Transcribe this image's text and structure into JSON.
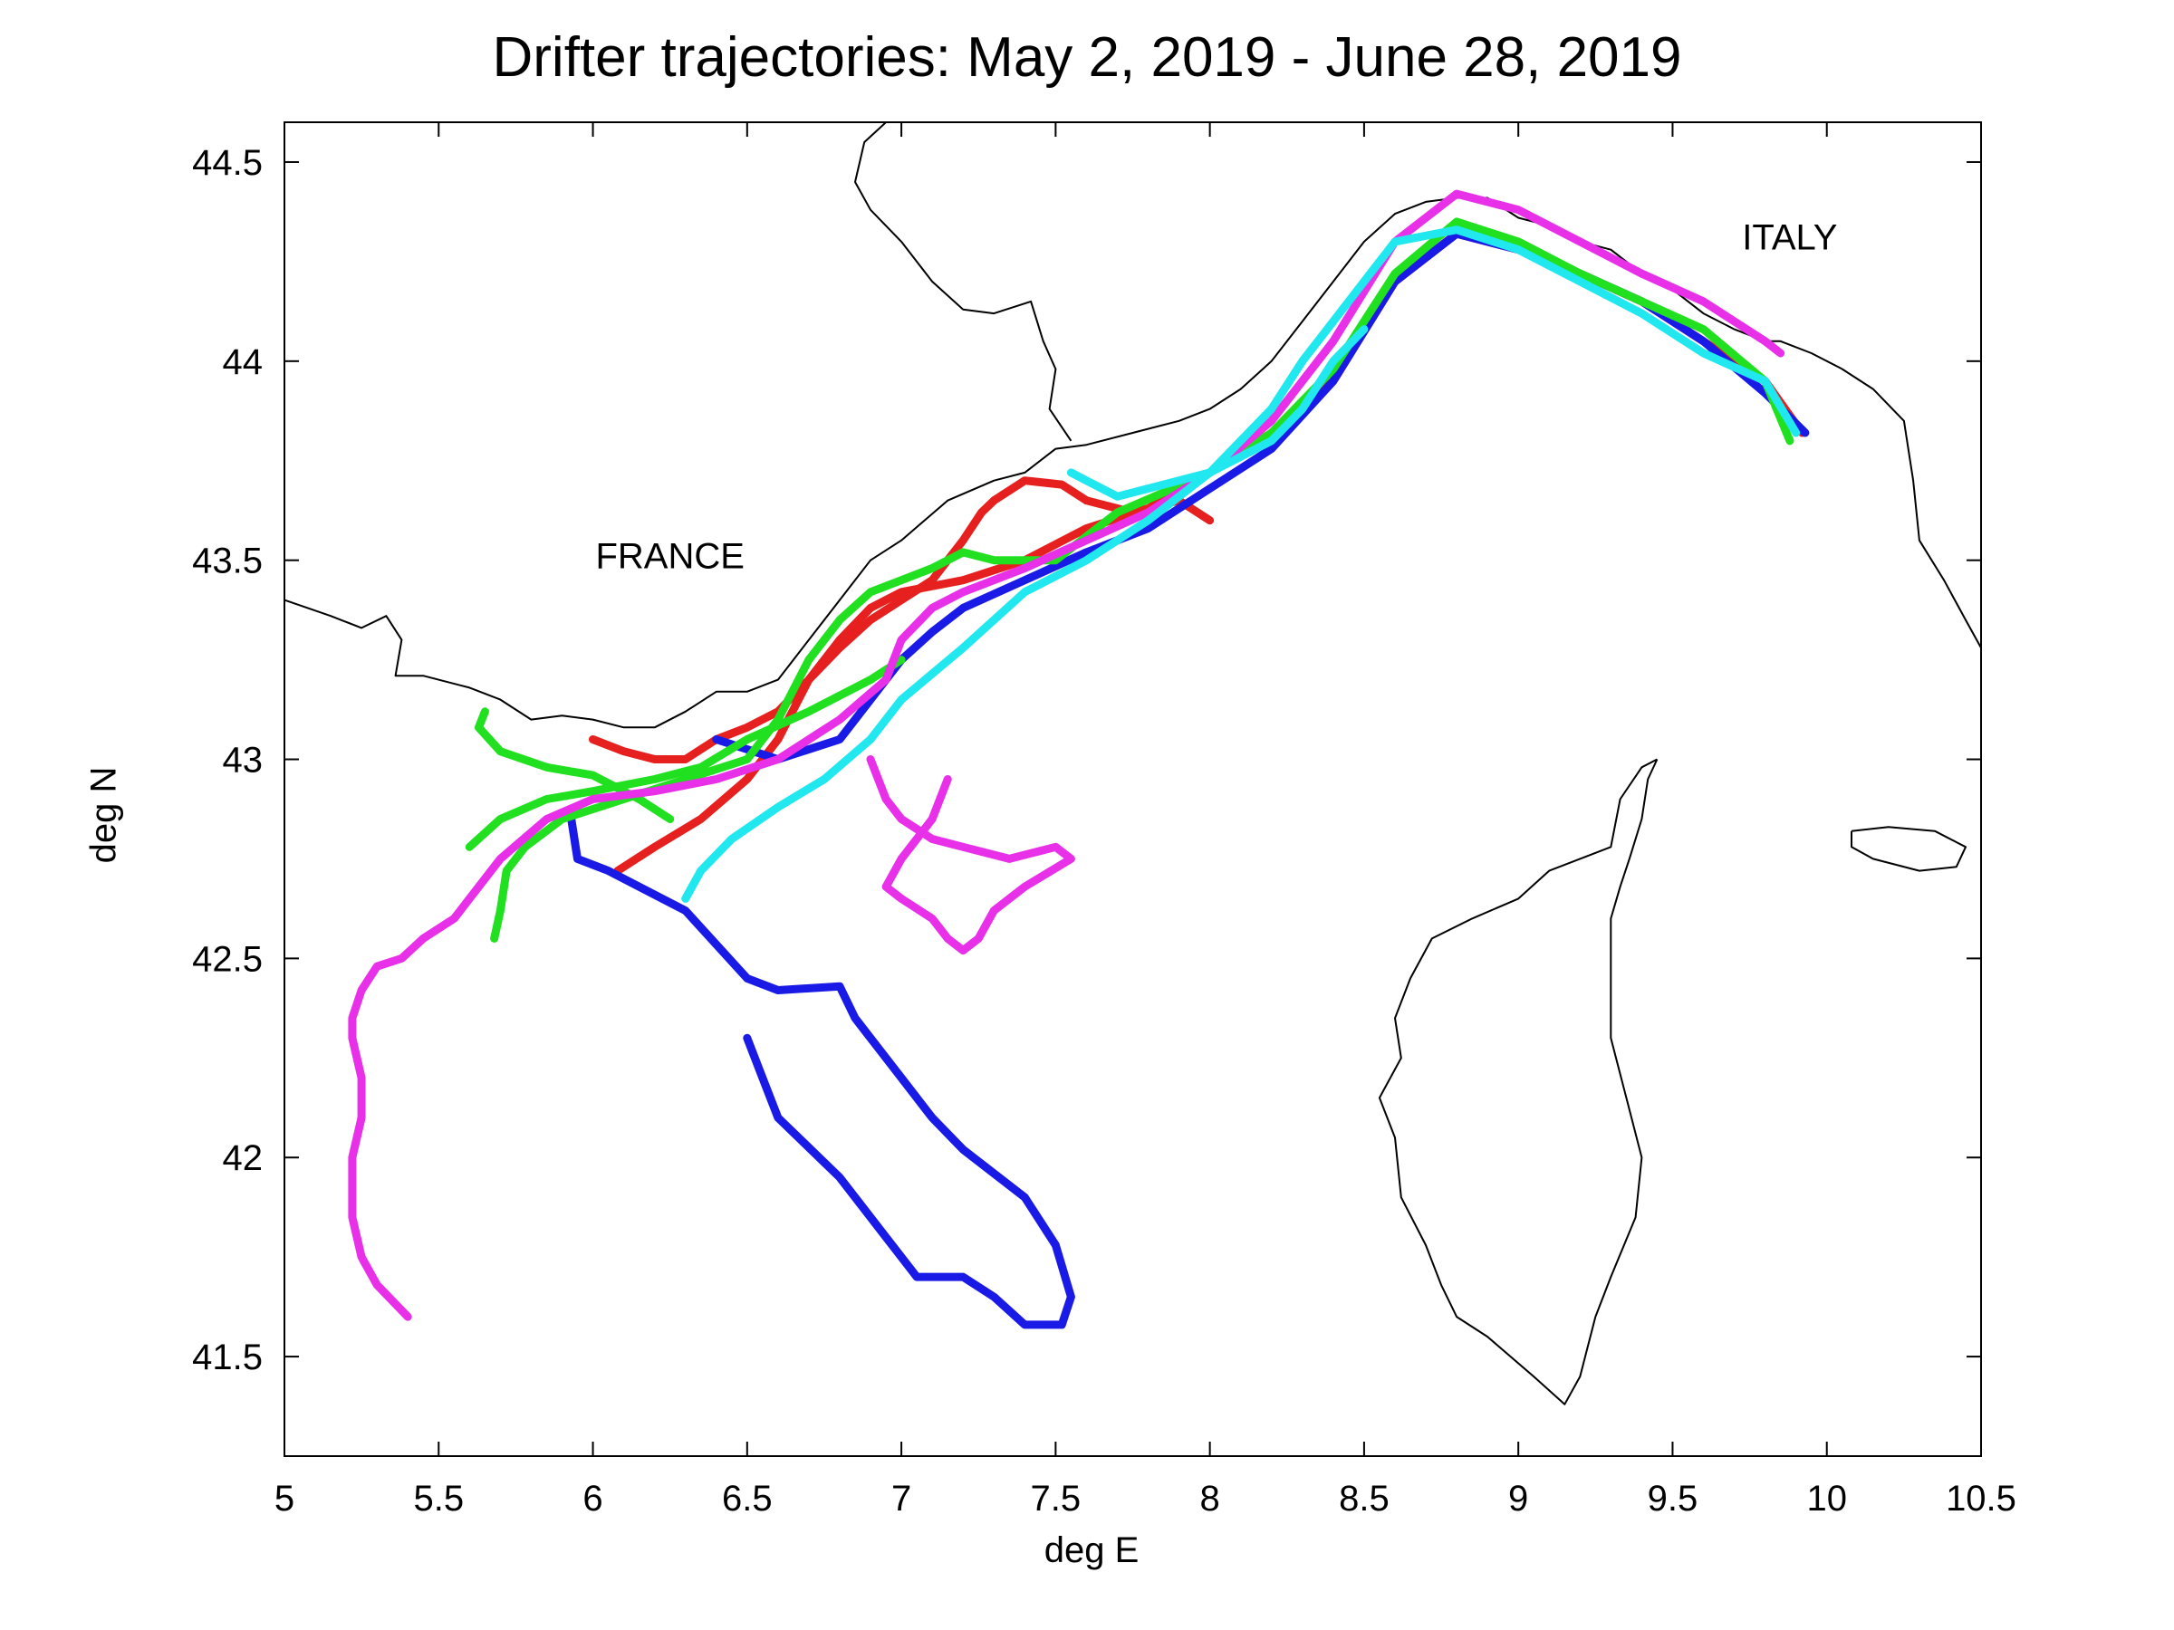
{
  "title": "Drifter trajectories: May 2, 2019 - June 28, 2019",
  "chart_data": {
    "type": "line",
    "title": "Drifter trajectories: May 2, 2019 - June 28, 2019",
    "xlabel": "deg E",
    "ylabel": "deg N",
    "xlim": [
      5,
      10.5
    ],
    "ylim": [
      41.25,
      44.6
    ],
    "xticks": [
      "5",
      "5.5",
      "6",
      "6.5",
      "7",
      "7.5",
      "8",
      "8.5",
      "9",
      "9.5",
      "10",
      "10.5"
    ],
    "yticks": [
      "41.5",
      "42",
      "42.5",
      "43",
      "43.5",
      "44",
      "44.5"
    ],
    "grid": false,
    "annotations": [
      {
        "text": "FRANCE",
        "x": 6.25,
        "y": 43.48
      },
      {
        "text": "ITALY",
        "x": 9.88,
        "y": 44.28
      }
    ],
    "coastline": {
      "mainland": [
        [
          5,
          43.4
        ],
        [
          5.15,
          43.36
        ],
        [
          5.25,
          43.33
        ],
        [
          5.33,
          43.36
        ],
        [
          5.38,
          43.3
        ],
        [
          5.36,
          43.21
        ],
        [
          5.45,
          43.21
        ],
        [
          5.6,
          43.18
        ],
        [
          5.7,
          43.15
        ],
        [
          5.8,
          43.1
        ],
        [
          5.9,
          43.11
        ],
        [
          6.0,
          43.1
        ],
        [
          6.1,
          43.08
        ],
        [
          6.2,
          43.08
        ],
        [
          6.3,
          43.12
        ],
        [
          6.4,
          43.17
        ],
        [
          6.5,
          43.17
        ],
        [
          6.6,
          43.2
        ],
        [
          6.7,
          43.3
        ],
        [
          6.8,
          43.4
        ],
        [
          6.9,
          43.5
        ],
        [
          7.0,
          43.55
        ],
        [
          7.15,
          43.65
        ],
        [
          7.3,
          43.7
        ],
        [
          7.4,
          43.72
        ],
        [
          7.5,
          43.78
        ],
        [
          7.6,
          43.79
        ],
        [
          7.75,
          43.82
        ],
        [
          7.9,
          43.85
        ],
        [
          8.0,
          43.88
        ],
        [
          8.1,
          43.93
        ],
        [
          8.2,
          44.0
        ],
        [
          8.3,
          44.1
        ],
        [
          8.4,
          44.2
        ],
        [
          8.5,
          44.3
        ],
        [
          8.6,
          44.37
        ],
        [
          8.7,
          44.4
        ],
        [
          8.8,
          44.41
        ],
        [
          8.9,
          44.41
        ],
        [
          9.0,
          44.36
        ],
        [
          9.1,
          44.34
        ],
        [
          9.2,
          44.3
        ],
        [
          9.3,
          44.28
        ],
        [
          9.4,
          44.22
        ],
        [
          9.5,
          44.18
        ],
        [
          9.6,
          44.12
        ],
        [
          9.7,
          44.08
        ],
        [
          9.8,
          44.05
        ],
        [
          9.85,
          44.05
        ],
        [
          9.95,
          44.02
        ],
        [
          10.05,
          43.98
        ],
        [
          10.15,
          43.93
        ],
        [
          10.25,
          43.85
        ],
        [
          10.28,
          43.7
        ],
        [
          10.3,
          43.55
        ],
        [
          10.38,
          43.45
        ],
        [
          10.45,
          43.35
        ],
        [
          10.5,
          43.28
        ]
      ],
      "inland": [
        [
          6.95,
          44.6
        ],
        [
          6.88,
          44.55
        ],
        [
          6.85,
          44.45
        ],
        [
          6.9,
          44.38
        ],
        [
          7.0,
          44.3
        ],
        [
          7.1,
          44.2
        ],
        [
          7.2,
          44.13
        ],
        [
          7.3,
          44.12
        ],
        [
          7.42,
          44.15
        ],
        [
          7.46,
          44.05
        ],
        [
          7.5,
          43.98
        ],
        [
          7.48,
          43.88
        ],
        [
          7.55,
          43.8
        ]
      ],
      "corsica": [
        [
          9.45,
          43.0
        ],
        [
          9.42,
          42.95
        ],
        [
          9.4,
          42.85
        ],
        [
          9.36,
          42.75
        ],
        [
          9.33,
          42.68
        ],
        [
          9.3,
          42.6
        ],
        [
          9.3,
          42.45
        ],
        [
          9.3,
          42.3
        ],
        [
          9.35,
          42.15
        ],
        [
          9.4,
          42.0
        ],
        [
          9.38,
          41.85
        ],
        [
          9.3,
          41.7
        ],
        [
          9.25,
          41.6
        ],
        [
          9.2,
          41.45
        ],
        [
          9.15,
          41.38
        ],
        [
          9.05,
          41.45
        ],
        [
          8.9,
          41.55
        ],
        [
          8.8,
          41.6
        ],
        [
          8.75,
          41.68
        ],
        [
          8.7,
          41.78
        ],
        [
          8.62,
          41.9
        ],
        [
          8.6,
          42.05
        ],
        [
          8.55,
          42.15
        ],
        [
          8.62,
          42.25
        ],
        [
          8.6,
          42.35
        ],
        [
          8.65,
          42.45
        ],
        [
          8.72,
          42.55
        ],
        [
          8.85,
          42.6
        ],
        [
          9.0,
          42.65
        ],
        [
          9.1,
          42.72
        ],
        [
          9.2,
          42.75
        ],
        [
          9.3,
          42.78
        ],
        [
          9.33,
          42.9
        ],
        [
          9.4,
          42.98
        ],
        [
          9.45,
          43.0
        ]
      ],
      "elba": [
        [
          10.08,
          42.82
        ],
        [
          10.2,
          42.83
        ],
        [
          10.35,
          42.82
        ],
        [
          10.45,
          42.78
        ],
        [
          10.42,
          42.73
        ],
        [
          10.3,
          42.72
        ],
        [
          10.15,
          42.75
        ],
        [
          10.08,
          42.78
        ],
        [
          10.08,
          42.82
        ]
      ]
    },
    "series": [
      {
        "color": "#e6201e",
        "x": [
          6.0,
          6.1,
          6.2,
          6.3,
          6.4,
          6.5,
          6.6,
          6.7,
          6.8,
          6.9,
          7.0,
          7.2,
          7.4,
          7.6,
          7.8,
          8.0,
          8.2,
          8.4,
          8.6,
          8.8,
          9.0,
          9.2,
          9.4,
          9.6,
          9.8,
          9.92
        ],
        "y": [
          43.05,
          43.02,
          43.0,
          43.0,
          43.05,
          43.08,
          43.12,
          43.2,
          43.3,
          43.38,
          43.42,
          43.45,
          43.5,
          43.58,
          43.63,
          43.72,
          43.82,
          43.95,
          44.2,
          44.32,
          44.28,
          44.22,
          44.15,
          44.05,
          43.95,
          43.82
        ]
      },
      {
        "color": "#e6201e",
        "x": [
          6.08,
          6.2,
          6.35,
          6.5,
          6.6,
          6.7,
          6.8,
          6.9,
          7.0,
          7.1,
          7.2,
          7.26,
          7.3,
          7.4,
          7.52,
          7.6,
          7.75,
          7.9,
          8.0
        ],
        "y": [
          42.72,
          42.78,
          42.85,
          42.95,
          43.05,
          43.2,
          43.28,
          43.35,
          43.4,
          43.45,
          43.55,
          43.62,
          43.65,
          43.7,
          43.69,
          43.65,
          43.62,
          43.65,
          43.6
        ]
      },
      {
        "color": "#1a1ae6",
        "x": [
          5.93,
          5.95,
          6.05,
          6.3,
          6.5,
          6.6,
          6.8,
          6.85,
          6.9,
          7.0,
          7.1,
          7.2,
          7.4,
          7.5,
          7.55,
          7.52,
          7.4,
          7.3,
          7.2,
          7.05,
          6.95,
          6.8,
          6.6,
          6.55,
          6.5
        ],
        "y": [
          42.85,
          42.75,
          42.72,
          42.62,
          42.45,
          42.42,
          42.43,
          42.35,
          42.3,
          42.2,
          42.1,
          42.02,
          41.9,
          41.78,
          41.65,
          41.58,
          41.58,
          41.65,
          41.7,
          41.7,
          41.8,
          41.95,
          42.1,
          42.2,
          42.3
        ]
      },
      {
        "color": "#1a1ae6",
        "x": [
          6.4,
          6.6,
          6.8,
          6.9,
          7.0,
          7.1,
          7.2,
          7.4,
          7.6,
          7.8,
          8.0,
          8.2,
          8.4,
          8.6,
          8.8,
          9.0,
          9.2,
          9.4,
          9.6,
          9.8,
          9.93
        ],
        "y": [
          43.05,
          43.0,
          43.05,
          43.15,
          43.25,
          43.32,
          43.38,
          43.45,
          43.52,
          43.58,
          43.68,
          43.78,
          43.95,
          44.2,
          44.32,
          44.28,
          44.22,
          44.15,
          44.05,
          43.92,
          43.82
        ]
      },
      {
        "color": "#20e020",
        "x": [
          5.68,
          5.7,
          5.72,
          5.78,
          5.9,
          6.1,
          6.3,
          6.5,
          6.6,
          6.7,
          6.8,
          6.9,
          7.0,
          7.1,
          7.2,
          7.3,
          7.5,
          7.7,
          8.0,
          8.2,
          8.4,
          8.6,
          8.8,
          9.0,
          9.2,
          9.4,
          9.6,
          9.8,
          9.88
        ],
        "y": [
          42.55,
          42.62,
          42.72,
          42.78,
          42.85,
          42.9,
          42.95,
          43.0,
          43.1,
          43.25,
          43.35,
          43.42,
          43.45,
          43.48,
          43.52,
          43.5,
          43.5,
          43.62,
          43.72,
          43.82,
          43.98,
          44.22,
          44.35,
          44.3,
          44.22,
          44.15,
          44.08,
          43.95,
          43.8
        ]
      },
      {
        "color": "#20e020",
        "x": [
          5.6,
          5.7,
          5.85,
          6.0,
          6.2,
          6.35,
          6.5,
          6.7,
          6.9,
          7.0
        ],
        "y": [
          42.78,
          42.85,
          42.9,
          42.92,
          42.95,
          42.98,
          43.05,
          43.12,
          43.2,
          43.25
        ]
      },
      {
        "color": "#20e020",
        "x": [
          5.65,
          5.63,
          5.7,
          5.85,
          6.0,
          6.15,
          6.25
        ],
        "y": [
          43.12,
          43.08,
          43.02,
          42.98,
          42.96,
          42.9,
          42.85
        ]
      },
      {
        "color": "#e830e8",
        "x": [
          5.45,
          5.38,
          5.3,
          5.25,
          5.22,
          5.22,
          5.25,
          5.25,
          5.22,
          5.22,
          5.25,
          5.3,
          5.4
        ],
        "y": [
          42.55,
          42.5,
          42.48,
          42.42,
          42.35,
          42.3,
          42.2,
          42.1,
          42.0,
          41.85,
          41.75,
          41.68,
          41.6
        ]
      },
      {
        "color": "#e830e8",
        "x": [
          5.45,
          5.55,
          5.6,
          5.7,
          5.85,
          6.0,
          6.2,
          6.4,
          6.6,
          6.8,
          6.95,
          7.0,
          7.1,
          7.2,
          7.4,
          7.6,
          7.8,
          8.0,
          8.2,
          8.4,
          8.6,
          8.8,
          9.0,
          9.2,
          9.4,
          9.6,
          9.8,
          9.85
        ],
        "y": [
          42.55,
          42.6,
          42.65,
          42.75,
          42.85,
          42.9,
          42.92,
          42.95,
          43.0,
          43.1,
          43.2,
          43.3,
          43.38,
          43.42,
          43.48,
          43.55,
          43.62,
          43.72,
          43.85,
          44.05,
          44.3,
          44.42,
          44.38,
          44.3,
          44.22,
          44.15,
          44.05,
          44.02
        ]
      },
      {
        "color": "#e830e8",
        "x": [
          6.9,
          6.95,
          7.0,
          7.1,
          7.2,
          7.35,
          7.5,
          7.55,
          7.4,
          7.3,
          7.25,
          7.2,
          7.15,
          7.1,
          7.0,
          6.95,
          7.0,
          7.1,
          7.15
        ],
        "y": [
          43.0,
          42.9,
          42.85,
          42.8,
          42.78,
          42.75,
          42.78,
          42.75,
          42.68,
          42.62,
          42.55,
          42.52,
          42.55,
          42.6,
          42.65,
          42.68,
          42.75,
          42.85,
          42.95
        ]
      },
      {
        "color": "#20e8ee",
        "x": [
          6.3,
          6.35,
          6.45,
          6.6,
          6.75,
          6.9,
          7.0,
          7.2,
          7.4,
          7.6,
          7.8,
          8.0,
          8.2,
          8.3,
          8.4,
          8.5,
          8.6,
          8.8,
          9.0,
          9.2,
          9.4,
          9.6,
          9.8,
          9.9
        ],
        "y": [
          42.65,
          42.72,
          42.8,
          42.88,
          42.95,
          43.05,
          43.15,
          43.28,
          43.42,
          43.5,
          43.6,
          43.72,
          43.88,
          44.0,
          44.1,
          44.2,
          44.3,
          44.33,
          44.28,
          44.2,
          44.12,
          44.02,
          43.95,
          43.82
        ]
      },
      {
        "color": "#20e8ee",
        "x": [
          7.55,
          7.6,
          7.7,
          7.8,
          8.0,
          8.2,
          8.3,
          8.4,
          8.5
        ],
        "y": [
          43.72,
          43.7,
          43.66,
          43.68,
          43.72,
          43.8,
          43.88,
          44.0,
          44.08
        ]
      }
    ]
  }
}
